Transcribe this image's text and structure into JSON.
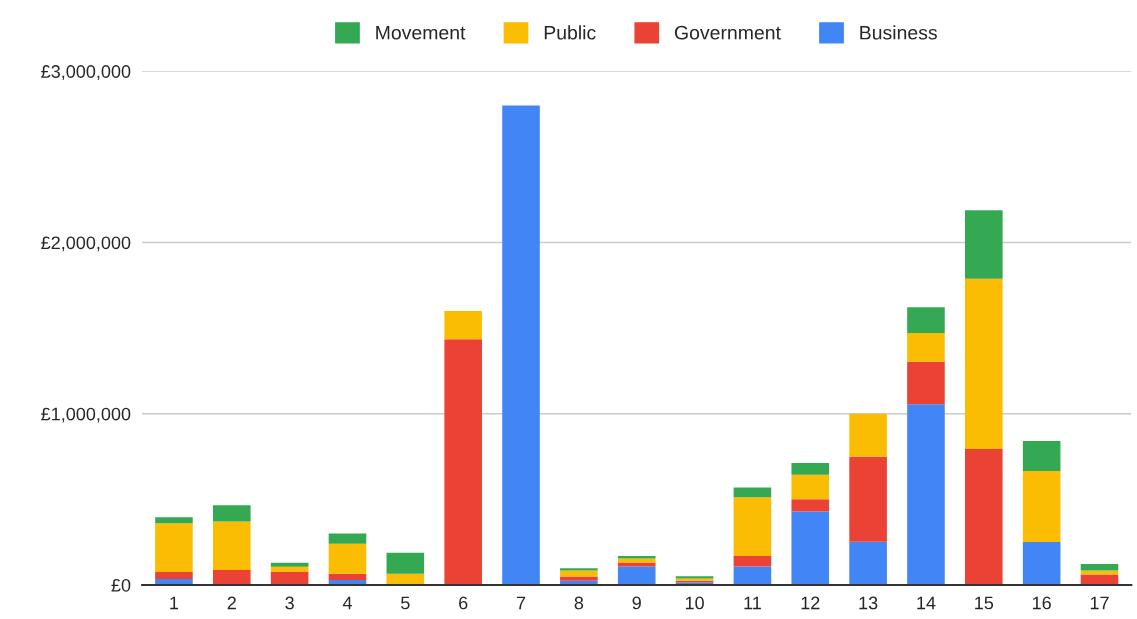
{
  "chart_data": {
    "type": "bar",
    "stacked": true,
    "categories": [
      "1",
      "2",
      "3",
      "4",
      "5",
      "6",
      "7",
      "8",
      "9",
      "10",
      "11",
      "12",
      "13",
      "14",
      "15",
      "16",
      "17"
    ],
    "series": [
      {
        "name": "Business",
        "color": "#4285f4",
        "values": [
          35000,
          0,
          0,
          29000,
          0,
          0,
          2800000,
          25000,
          108000,
          14000,
          108000,
          429000,
          253000,
          1055000,
          0,
          251000,
          0
        ]
      },
      {
        "name": "Government",
        "color": "#ea4335",
        "values": [
          40000,
          88000,
          76000,
          36000,
          0,
          1435000,
          0,
          24000,
          23000,
          11000,
          61000,
          71000,
          496000,
          249000,
          794000,
          0,
          61000
        ]
      },
      {
        "name": "Public",
        "color": "#fbbc04",
        "values": [
          285000,
          283000,
          30000,
          176000,
          65000,
          165000,
          0,
          35000,
          24000,
          12000,
          343000,
          143000,
          251000,
          167000,
          994000,
          414000,
          23000
        ]
      },
      {
        "name": "Movement",
        "color": "#34a853",
        "values": [
          35000,
          94000,
          23000,
          59000,
          123000,
          0,
          0,
          14000,
          14000,
          14000,
          57000,
          69000,
          0,
          151000,
          400000,
          176000,
          38000
        ]
      }
    ],
    "ylim": [
      0,
      3000000
    ],
    "yticks": [
      {
        "value": 0,
        "label": "£0"
      },
      {
        "value": 1000000,
        "label": "£1,000,000"
      },
      {
        "value": 2000000,
        "label": "£2,000,000"
      },
      {
        "value": 3000000,
        "label": "£3,000,000"
      }
    ],
    "grid": "y",
    "legend": "top"
  }
}
